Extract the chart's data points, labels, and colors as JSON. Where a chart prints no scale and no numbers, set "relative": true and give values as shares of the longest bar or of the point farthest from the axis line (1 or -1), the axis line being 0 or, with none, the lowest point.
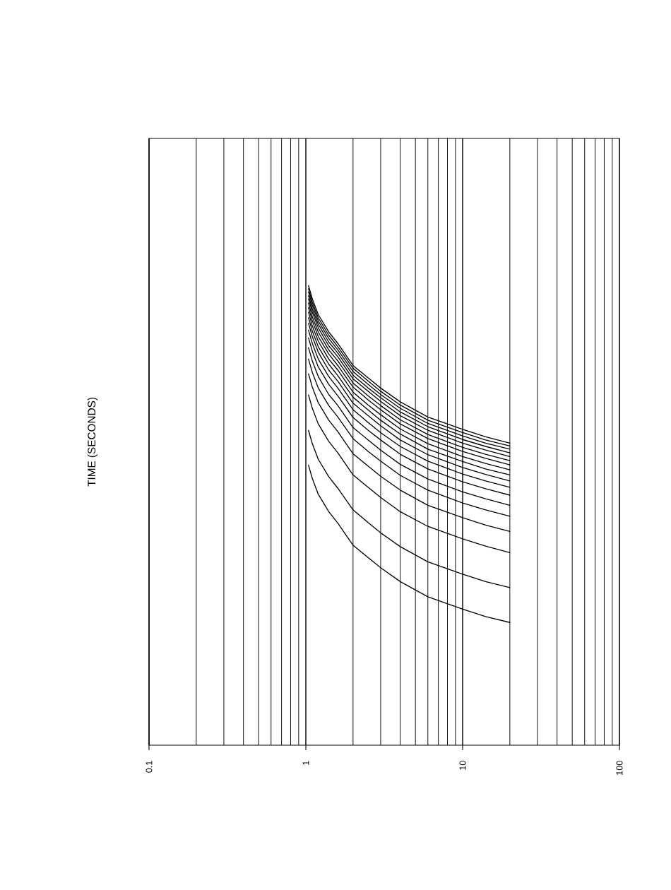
{
  "chart_data": {
    "type": "line",
    "ylabel": "TIME (SECONDS)",
    "relative": true,
    "log": "x",
    "grid": "x",
    "tick_labels": "x",
    "xlim": [
      0.1,
      100
    ],
    "xticks": [
      0.1,
      1,
      10,
      100
    ],
    "x": [
      1.04,
      1.1,
      1.2,
      1.4,
      1.6,
      2,
      2.5,
      3,
      4,
      6,
      10,
      14,
      20
    ],
    "series": [
      {
        "color": "#000000",
        "values": [
          1.0,
          0.971,
          0.937,
          0.899,
          0.874,
          0.826,
          0.799,
          0.777,
          0.747,
          0.714,
          0.687,
          0.671,
          0.657
        ]
      },
      {
        "color": "#000000",
        "values": [
          0.993,
          0.964,
          0.93,
          0.892,
          0.867,
          0.82,
          0.792,
          0.77,
          0.74,
          0.707,
          0.68,
          0.664,
          0.651
        ]
      },
      {
        "color": "#000000",
        "values": [
          0.986,
          0.957,
          0.923,
          0.885,
          0.86,
          0.813,
          0.785,
          0.763,
          0.733,
          0.7,
          0.673,
          0.657,
          0.644
        ]
      },
      {
        "color": "#000000",
        "values": [
          0.978,
          0.949,
          0.916,
          0.877,
          0.853,
          0.805,
          0.777,
          0.756,
          0.725,
          0.693,
          0.665,
          0.65,
          0.636
        ]
      },
      {
        "color": "#000000",
        "values": [
          0.971,
          0.942,
          0.908,
          0.869,
          0.845,
          0.797,
          0.77,
          0.748,
          0.717,
          0.685,
          0.657,
          0.642,
          0.628
        ]
      },
      {
        "color": "#000000",
        "values": [
          0.962,
          0.932,
          0.899,
          0.86,
          0.836,
          0.788,
          0.76,
          0.739,
          0.708,
          0.676,
          0.648,
          0.633,
          0.619
        ]
      },
      {
        "color": "#000000",
        "values": [
          0.952,
          0.923,
          0.889,
          0.851,
          0.826,
          0.779,
          0.751,
          0.73,
          0.699,
          0.667,
          0.639,
          0.624,
          0.61
        ]
      },
      {
        "color": "#000000",
        "values": [
          0.942,
          0.912,
          0.879,
          0.84,
          0.816,
          0.768,
          0.74,
          0.719,
          0.688,
          0.656,
          0.628,
          0.613,
          0.599
        ]
      },
      {
        "color": "#000000",
        "values": [
          0.93,
          0.901,
          0.867,
          0.829,
          0.804,
          0.757,
          0.729,
          0.707,
          0.677,
          0.644,
          0.617,
          0.601,
          0.588
        ]
      },
      {
        "color": "#000000",
        "values": [
          0.918,
          0.889,
          0.855,
          0.816,
          0.792,
          0.744,
          0.717,
          0.695,
          0.664,
          0.632,
          0.604,
          0.589,
          0.575
        ]
      },
      {
        "color": "#000000",
        "values": [
          0.903,
          0.874,
          0.84,
          0.802,
          0.777,
          0.73,
          0.702,
          0.68,
          0.65,
          0.618,
          0.59,
          0.575,
          0.561
        ]
      },
      {
        "color": "#000000",
        "values": [
          0.886,
          0.857,
          0.823,
          0.785,
          0.76,
          0.713,
          0.685,
          0.664,
          0.633,
          0.601,
          0.573,
          0.558,
          0.544
        ]
      },
      {
        "color": "#000000",
        "values": [
          0.865,
          0.836,
          0.802,
          0.763,
          0.739,
          0.691,
          0.664,
          0.642,
          0.611,
          0.579,
          0.551,
          0.536,
          0.522
        ]
      },
      {
        "color": "#000000",
        "values": [
          0.84,
          0.811,
          0.777,
          0.739,
          0.714,
          0.667,
          0.639,
          0.618,
          0.587,
          0.555,
          0.527,
          0.512,
          0.498
        ]
      },
      {
        "color": "#000000",
        "values": [
          0.808,
          0.779,
          0.745,
          0.707,
          0.682,
          0.634,
          0.607,
          0.585,
          0.555,
          0.522,
          0.495,
          0.479,
          0.465
        ]
      },
      {
        "color": "#000000",
        "values": [
          0.762,
          0.733,
          0.699,
          0.661,
          0.636,
          0.588,
          0.561,
          0.539,
          0.508,
          0.476,
          0.449,
          0.433,
          0.419
        ]
      },
      {
        "color": "#000000",
        "values": [
          0.685,
          0.656,
          0.622,
          0.584,
          0.559,
          0.512,
          0.484,
          0.462,
          0.432,
          0.399,
          0.372,
          0.356,
          0.343
        ]
      },
      {
        "color": "#000000",
        "values": [
          0.609,
          0.58,
          0.546,
          0.508,
          0.483,
          0.435,
          0.408,
          0.386,
          0.356,
          0.323,
          0.296,
          0.28,
          0.267
        ]
      }
    ]
  }
}
